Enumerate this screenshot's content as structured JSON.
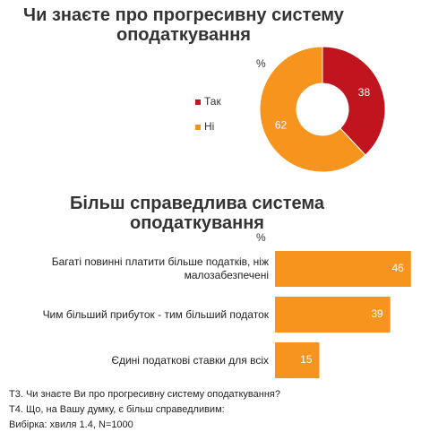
{
  "chart_data": [
    {
      "type": "pie",
      "title": "Чи знаєте про прогресивну систему оподаткування",
      "unit": "%",
      "categories": [
        "Так",
        "Ні"
      ],
      "values": [
        38,
        62
      ],
      "colors": [
        "#c0141e",
        "#f7941d"
      ]
    },
    {
      "type": "bar",
      "title": "Більш справедлива система оподаткування",
      "unit": "%",
      "categories": [
        "Багаті повинні платити більше податків, ніж малозабезпечені",
        "Чим більший прибуток  - тим більший податок",
        "Єдині податкові ставки для всіх"
      ],
      "values": [
        46,
        39,
        15
      ],
      "color": "#f7941d"
    }
  ],
  "notes": [
    "Т3. Чи знаєте Ви про прогресивну систему оподаткування?",
    "Т4. Що, на Вашу думку, є більш справедливим:",
    "Вибірка: хвиля 1.4, N=1000"
  ]
}
